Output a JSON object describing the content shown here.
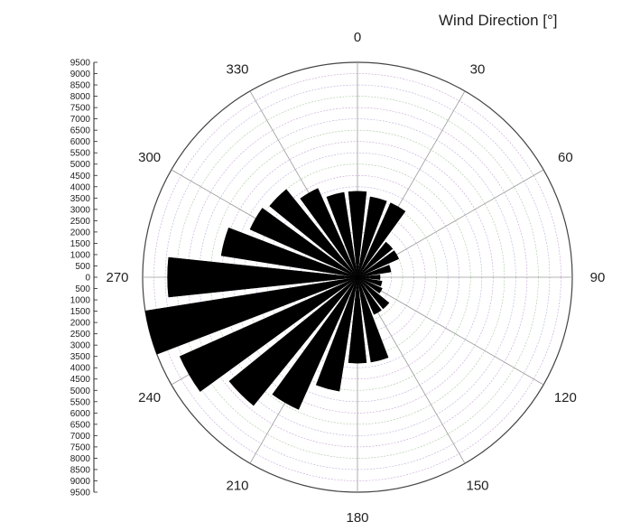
{
  "chart_data": {
    "type": "polar-bar",
    "title": "Wind Direction [°]",
    "angular_ticks": [
      "0",
      "30",
      "60",
      "90",
      "120",
      "150",
      "180",
      "210",
      "240",
      "270",
      "300",
      "330"
    ],
    "radial_ticks": [
      "9500",
      "9000",
      "8500",
      "8000",
      "7500",
      "7000",
      "6500",
      "6000",
      "5500",
      "5000",
      "4500",
      "4000",
      "3500",
      "3000",
      "2500",
      "2000",
      "1500",
      "1000",
      "500",
      "0",
      "500",
      "1000",
      "1500",
      "2000",
      "2500",
      "3000",
      "3500",
      "4000",
      "4500",
      "5000",
      "5500",
      "6000",
      "6500",
      "7000",
      "7500",
      "8000",
      "8500",
      "9000",
      "9500"
    ],
    "rlim": [
      0,
      9500
    ],
    "sector_width_deg": 12,
    "grid": true,
    "directions": [
      0,
      15,
      30,
      45,
      60,
      75,
      90,
      105,
      120,
      135,
      150,
      165,
      180,
      195,
      210,
      225,
      240,
      255,
      270,
      285,
      300,
      315,
      330,
      345
    ],
    "values": [
      3800,
      3600,
      3600,
      2000,
      2000,
      1500,
      1000,
      1100,
      1200,
      1800,
      1800,
      3800,
      3800,
      5100,
      6400,
      7300,
      8600,
      9500,
      8400,
      6100,
      5200,
      5000,
      4300,
      3800
    ]
  }
}
